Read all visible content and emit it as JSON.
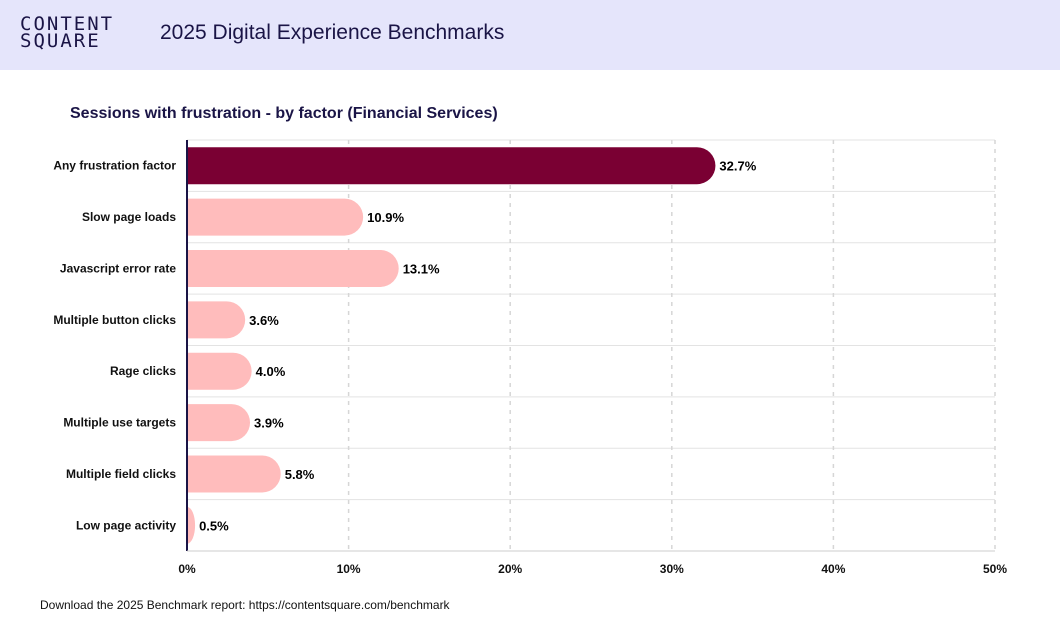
{
  "header": {
    "logo_line1": "CONTENT",
    "logo_line2": "SQUARE",
    "title": "2025 Digital Experience Benchmarks"
  },
  "footer": {
    "text": "Download the 2025 Benchmark report: https://contentsquare.com/benchmark"
  },
  "colors": {
    "header_bg": "#e5e5fb",
    "brand_text": "#1a1446",
    "highlight_bar": "#7a0033",
    "bar": "#ffbcbc",
    "axis": "#1a1446"
  },
  "chart_data": {
    "type": "bar",
    "orientation": "horizontal",
    "title": "Sessions with frustration - by factor (Financial Services)",
    "categories": [
      "Any frustration factor",
      "Slow page loads",
      "Javascript error rate",
      "Multiple button clicks",
      "Rage clicks",
      "Multiple use targets",
      "Multiple field clicks",
      "Low page activity"
    ],
    "values": [
      32.7,
      10.9,
      13.1,
      3.6,
      4.0,
      3.9,
      5.8,
      0.5
    ],
    "value_labels": [
      "32.7%",
      "10.9%",
      "13.1%",
      "3.6%",
      "4.0%",
      "3.9%",
      "5.8%",
      "0.5%"
    ],
    "highlight_index": 0,
    "xlim": [
      0,
      50
    ],
    "x_ticks": [
      0,
      10,
      20,
      30,
      40,
      50
    ],
    "x_tick_labels": [
      "0%",
      "10%",
      "20%",
      "30%",
      "40%",
      "50%"
    ],
    "xlabel": "",
    "ylabel": "",
    "grid": "vertical dashed",
    "legend": "none"
  }
}
